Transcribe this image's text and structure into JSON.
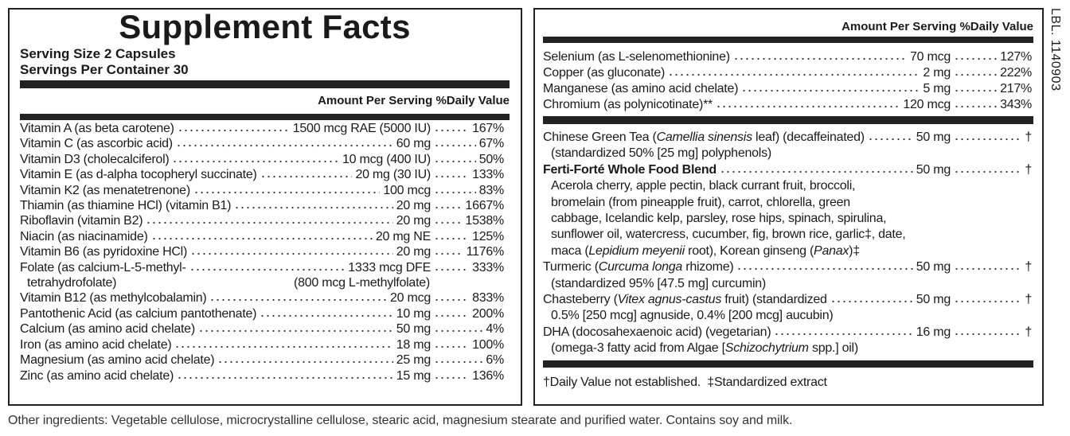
{
  "left": {
    "title": "Supplement Facts",
    "serving_size": "Serving Size 2 Capsules",
    "servings_per_container": "Servings Per Container 30",
    "amount_header": "Amount Per Serving",
    "dv_header": "%Daily Value",
    "rows": [
      {
        "name": "Vitamin A (as beta carotene)",
        "amount": "1500 mcg RAE (5000 IU)",
        "dv": "167%"
      },
      {
        "name": "Vitamin C (as ascorbic acid)",
        "amount": "60 mg",
        "dv": "67%"
      },
      {
        "name": "Vitamin D3 (cholecalciferol)",
        "amount": "10 mcg (400 IU)",
        "dv": "50%"
      },
      {
        "name": "Vitamin E (as d-alpha tocopheryl succinate)",
        "amount": "20 mg (30 IU)",
        "dv": "133%"
      },
      {
        "name": "Vitamin K2 (as menatetrenone)",
        "amount": "100 mcg",
        "dv": "83%"
      },
      {
        "name": "Thiamin (as thiamine HCl) (vitamin B1)",
        "amount": "20 mg",
        "dv": "1667%"
      },
      {
        "name": "Riboflavin (vitamin B2)",
        "amount": "20 mg",
        "dv": "1538%"
      },
      {
        "name": "Niacin (as niacinamide)",
        "amount": "20 mg NE",
        "dv": "125%"
      },
      {
        "name": "Vitamin B6 (as pyridoxine HCl)",
        "amount": "20 mg",
        "dv": "1176%"
      },
      {
        "name": "Folate (as calcium-L-5-methyl-",
        "amount": "1333 mcg DFE",
        "dv": "333%",
        "name_cont": "tetrahydrofolate)",
        "amount_cont": "(800 mcg L-methylfolate)"
      },
      {
        "name": "Vitamin B12 (as methylcobalamin)",
        "amount": "20 mcg",
        "dv": "833%"
      },
      {
        "name": "Pantothenic Acid (as calcium pantothenate)",
        "amount": "10 mg",
        "dv": "200%"
      },
      {
        "name": "Calcium (as amino acid chelate)",
        "amount": "50 mg",
        "dv": "4%"
      },
      {
        "name": "Iron (as amino acid chelate)",
        "amount": "18 mg",
        "dv": "100%"
      },
      {
        "name": "Magnesium (as amino acid chelate)",
        "amount": "25 mg",
        "dv": "6%"
      },
      {
        "name": "Zinc (as amino acid chelate)",
        "amount": "15 mg",
        "dv": "136%"
      }
    ]
  },
  "right": {
    "amount_header": "Amount Per Serving",
    "dv_header": "%Daily Value",
    "minerals": [
      {
        "name": "Selenium (as L-selenomethionine)",
        "amount": "70 mcg",
        "dv": "127%"
      },
      {
        "name": "Copper (as gluconate)",
        "amount": "2 mg",
        "dv": "222%"
      },
      {
        "name": "Manganese (as amino acid chelate)",
        "amount": "5 mg",
        "dv": "217%"
      },
      {
        "name": "Chromium (as polynicotinate)**",
        "amount": "120 mcg",
        "dv": "343%"
      }
    ],
    "blends": [
      {
        "name": [
          {
            "text": "Chinese Green Tea ("
          },
          {
            "text": "Camellia sinensis",
            "italic": true
          },
          {
            "text": " leaf) (decaffeinated)"
          }
        ],
        "amount": "50 mg",
        "dv": "†",
        "lines": [
          [
            {
              "text": "(standardized 50% [25 mg] polyphenols)"
            }
          ]
        ],
        "indent": false
      },
      {
        "name": [
          {
            "text": "Ferti-Forté Whole Food Blend",
            "bold": true
          }
        ],
        "amount": "50 mg",
        "dv": "†",
        "lines": [
          [
            {
              "text": "Acerola cherry, apple pectin, black currant fruit, broccoli,"
            }
          ],
          [
            {
              "text": "bromelain (from pineapple fruit), carrot, chlorella, green"
            }
          ],
          [
            {
              "text": "cabbage, Icelandic kelp, parsley, rose hips, spinach, spirulina,"
            }
          ],
          [
            {
              "text": "sunflower oil, watercress, cucumber, fig, brown rice, garlic‡, date,"
            }
          ],
          [
            {
              "text": "maca ("
            },
            {
              "text": "Lepidium meyenii",
              "italic": true
            },
            {
              "text": " root), Korean ginseng ("
            },
            {
              "text": "Panax",
              "italic": true
            },
            {
              "text": ")‡"
            }
          ]
        ],
        "indent": true
      },
      {
        "name": [
          {
            "text": "Turmeric ("
          },
          {
            "text": "Curcuma longa",
            "italic": true
          },
          {
            "text": " rhizome)"
          }
        ],
        "amount": "50 mg",
        "dv": "†",
        "lines": [
          [
            {
              "text": "(standardized 95% [47.5 mg] curcumin)"
            }
          ]
        ],
        "indent": false
      },
      {
        "name": [
          {
            "text": "Chasteberry ("
          },
          {
            "text": "Vitex agnus-castus",
            "italic": true
          },
          {
            "text": " fruit) (standardized"
          }
        ],
        "amount": "50 mg",
        "dv": "†",
        "lines": [
          [
            {
              "text": "0.5% [250 mcg] agnuside, 0.4% [200 mcg] aucubin)"
            }
          ]
        ],
        "indent": false
      },
      {
        "name": [
          {
            "text": "DHA (docosahexaenoic acid) (vegetarian)"
          }
        ],
        "amount": "16 mg",
        "dv": "†",
        "lines": [
          [
            {
              "text": "(omega-3 fatty acid from Algae ["
            },
            {
              "text": "Schizochytrium",
              "italic": true
            },
            {
              "text": " spp.] oil)"
            }
          ]
        ],
        "indent": false
      }
    ],
    "footnote": "†Daily Value not established.  ‡Standardized extract"
  },
  "other_ingredients": "Other ingredients: Vegetable cellulose, microcrystalline cellulose, stearic acid, magnesium stearate and purified water. Contains soy and milk.",
  "label_code": "LBL. 1140903"
}
